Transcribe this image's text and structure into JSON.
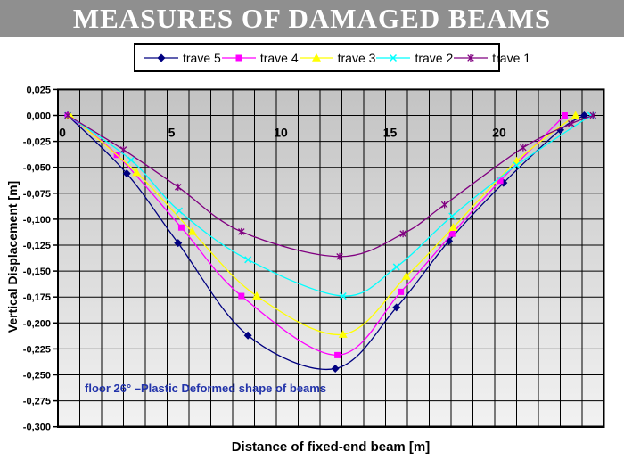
{
  "title": "MEASURES OF DAMAGED BEAMS",
  "banner_color": "#8f8f8f",
  "annotation": "floor 26° –Plastic Deformed shape of beams",
  "annotation_color": "#2233aa",
  "legend": {
    "items": [
      {
        "label": "trave 5",
        "color": "#000080",
        "marker": "diamond"
      },
      {
        "label": "trave 4",
        "color": "#ff00ff",
        "marker": "square"
      },
      {
        "label": "trave 3",
        "color": "#ffff00",
        "marker": "triangle"
      },
      {
        "label": "trave 2",
        "color": "#00ffff",
        "marker": "x"
      },
      {
        "label": "trave 1",
        "color": "#800080",
        "marker": "asterisk"
      }
    ]
  },
  "chart_data": {
    "type": "line",
    "title": "MEASURES OF DAMAGED BEAMS",
    "xlabel": "Distance of fixed-end beam [m]",
    "ylabel": "Vertical Displacement [m]",
    "xlim": [
      0,
      25
    ],
    "ylim": [
      -0.3,
      0.025
    ],
    "x_grid_step": 1,
    "y_grid_step": 0.025,
    "grid": true,
    "legend_position": "top",
    "plot_bg_gradient": [
      "#c3c3c3",
      "#f2f2f2"
    ],
    "x_ticks": [
      {
        "label": "0",
        "x": 0
      },
      {
        "label": "5",
        "x": 5
      },
      {
        "label": "10",
        "x": 10
      },
      {
        "label": "15",
        "x": 15
      },
      {
        "label": "20",
        "x": 20
      }
    ],
    "y_ticks": [
      {
        "label": "0,025",
        "v": 0.025
      },
      {
        "label": "0,000",
        "v": 0.0
      },
      {
        "label": "-0,025",
        "v": -0.025
      },
      {
        "label": "-0,050",
        "v": -0.05
      },
      {
        "label": "-0,075",
        "v": -0.075
      },
      {
        "label": "-0,100",
        "v": -0.1
      },
      {
        "label": "-0,125",
        "v": -0.125
      },
      {
        "label": "-0,150",
        "v": -0.15
      },
      {
        "label": "-0,175",
        "v": -0.175
      },
      {
        "label": "-0,200",
        "v": -0.2
      },
      {
        "label": "-0,225",
        "v": -0.225
      },
      {
        "label": "-0,250",
        "v": -0.25
      },
      {
        "label": "-0,275",
        "v": -0.275
      },
      {
        "label": "-0,300",
        "v": -0.3
      }
    ],
    "series": [
      {
        "name": "trave 5",
        "color": "#000080",
        "marker": "diamond",
        "points": [
          [
            0.45,
            0
          ],
          [
            3.15,
            -0.056
          ],
          [
            5.5,
            -0.123
          ],
          [
            8.7,
            -0.212
          ],
          [
            12.7,
            -0.244
          ],
          [
            15.5,
            -0.185
          ],
          [
            17.9,
            -0.121
          ],
          [
            20.4,
            -0.065
          ],
          [
            23.0,
            -0.014
          ],
          [
            24.1,
            0
          ]
        ]
      },
      {
        "name": "trave 4",
        "color": "#ff00ff",
        "marker": "square",
        "points": [
          [
            0.45,
            0
          ],
          [
            2.7,
            -0.038
          ],
          [
            5.65,
            -0.108
          ],
          [
            8.4,
            -0.174
          ],
          [
            12.8,
            -0.231
          ],
          [
            15.7,
            -0.17
          ],
          [
            18.05,
            -0.114
          ],
          [
            20.25,
            -0.063
          ],
          [
            23.2,
            0
          ]
        ]
      },
      {
        "name": "trave 3",
        "color": "#ffff00",
        "marker": "triangle",
        "points": [
          [
            0.55,
            0
          ],
          [
            3.6,
            -0.055
          ],
          [
            6.15,
            -0.112
          ],
          [
            9.1,
            -0.174
          ],
          [
            13.05,
            -0.211
          ],
          [
            15.95,
            -0.155
          ],
          [
            18.1,
            -0.108
          ],
          [
            21.0,
            -0.044
          ],
          [
            23.7,
            0
          ]
        ]
      },
      {
        "name": "trave 2",
        "color": "#00ffff",
        "marker": "x",
        "points": [
          [
            0.45,
            0
          ],
          [
            3.35,
            -0.043
          ],
          [
            5.55,
            -0.092
          ],
          [
            8.7,
            -0.139
          ],
          [
            13.05,
            -0.174
          ],
          [
            15.5,
            -0.146
          ],
          [
            18.05,
            -0.097
          ],
          [
            21.0,
            -0.048
          ],
          [
            24.4,
            0
          ]
        ]
      },
      {
        "name": "trave 1",
        "color": "#800080",
        "marker": "asterisk",
        "points": [
          [
            0.45,
            0
          ],
          [
            3.0,
            -0.033
          ],
          [
            5.5,
            -0.069
          ],
          [
            8.4,
            -0.112
          ],
          [
            12.9,
            -0.136
          ],
          [
            15.8,
            -0.114
          ],
          [
            17.7,
            -0.086
          ],
          [
            21.3,
            -0.031
          ],
          [
            23.5,
            -0.008
          ],
          [
            24.5,
            0
          ]
        ]
      }
    ]
  }
}
